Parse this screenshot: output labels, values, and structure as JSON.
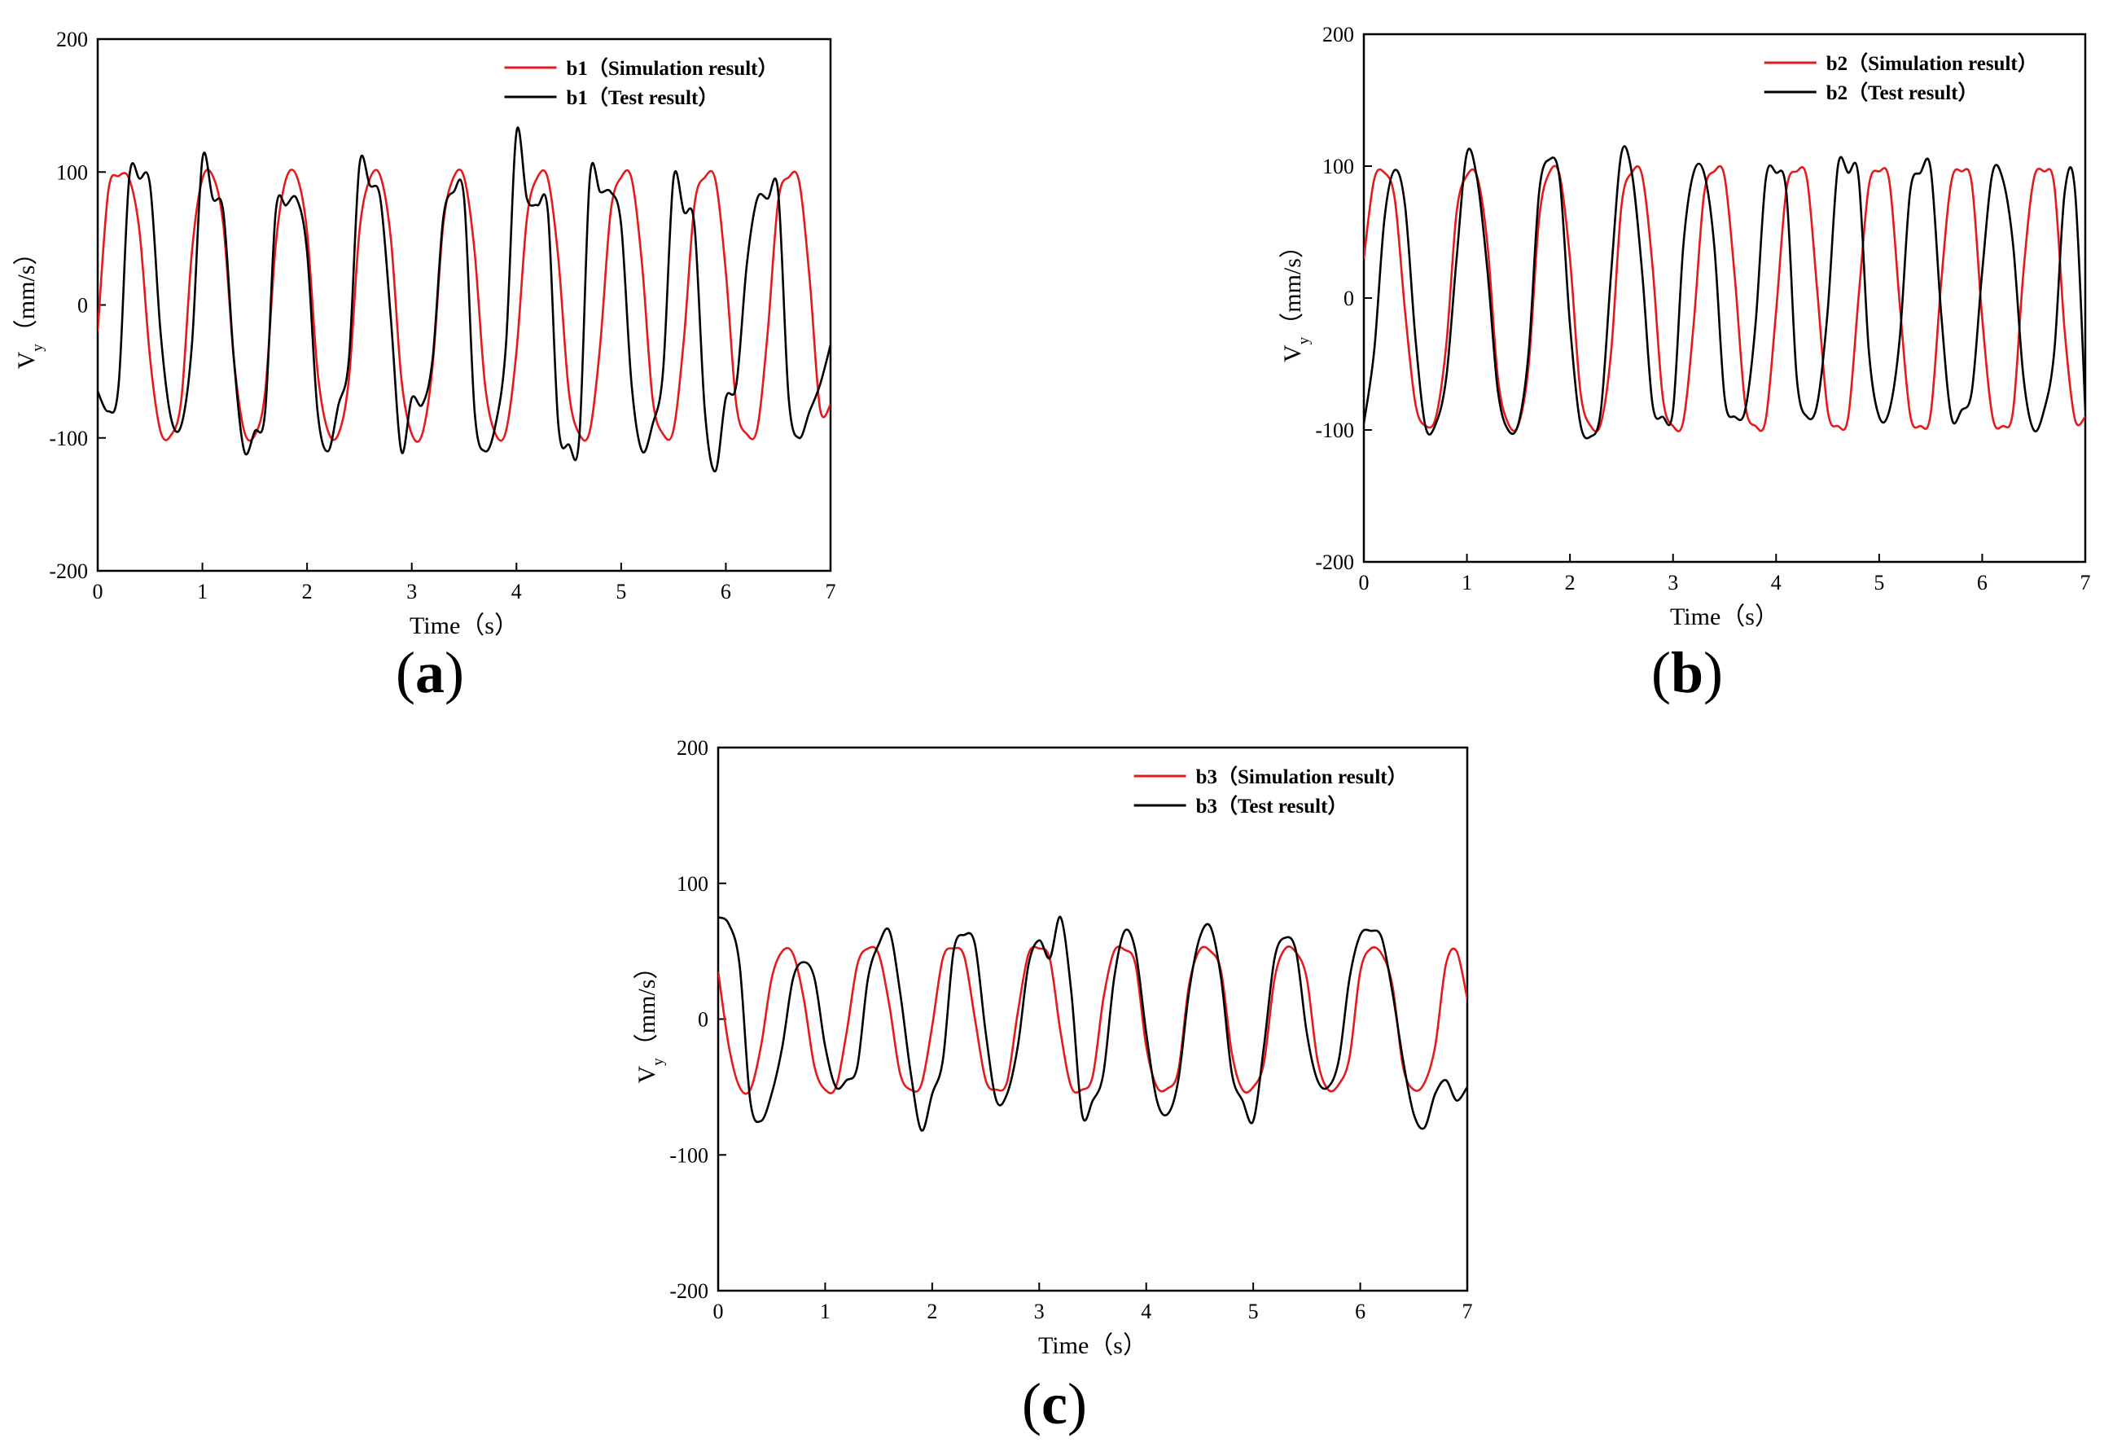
{
  "chart_data": [
    {
      "type": "line",
      "panel_label": "(a)",
      "xlabel": "Time（s）",
      "ylabel": "V",
      "ylabel_sub": "y",
      "ylabel_unit": "（mm/s）",
      "xlim": [
        0,
        7
      ],
      "ylim": [
        -200,
        200
      ],
      "xticks": [
        "0",
        "1",
        "2",
        "3",
        "4",
        "5",
        "6",
        "7"
      ],
      "yticks": [
        "-200",
        "-100",
        "0",
        "100",
        "200"
      ],
      "legend_position": "top-right",
      "series": [
        {
          "name": "b1（Simulation result）",
          "color": "#e41a1c",
          "x": [
            0,
            0.1,
            0.2,
            0.3,
            0.4,
            0.5,
            0.6,
            0.7,
            0.8,
            0.9,
            1.0,
            1.1,
            1.2,
            1.3,
            1.4,
            1.5,
            1.6,
            1.7,
            1.8,
            1.9,
            2.0,
            2.1,
            2.2,
            2.3,
            2.4,
            2.5,
            2.6,
            2.7,
            2.8,
            2.9,
            3.0,
            3.1,
            3.2,
            3.3,
            3.4,
            3.5,
            3.6,
            3.7,
            3.8,
            3.9,
            4.0,
            4.1,
            4.2,
            4.3,
            4.4,
            4.5,
            4.6,
            4.7,
            4.8,
            4.9,
            5.0,
            5.1,
            5.2,
            5.3,
            5.4,
            5.5,
            5.6,
            5.7,
            5.8,
            5.9,
            6.0,
            6.1,
            6.2,
            6.3,
            6.4,
            6.5,
            6.6,
            6.7,
            6.8,
            6.9,
            7.0
          ],
          "values": [
            -20,
            85,
            97,
            95,
            55,
            -40,
            -95,
            -98,
            -70,
            40,
            95,
            97,
            60,
            -40,
            -95,
            -98,
            -65,
            45,
            95,
            97,
            55,
            -50,
            -95,
            -97,
            -55,
            55,
            95,
            97,
            50,
            -55,
            -97,
            -97,
            -45,
            60,
            96,
            96,
            40,
            -60,
            -97,
            -95,
            -35,
            65,
            96,
            95,
            35,
            -65,
            -97,
            -95,
            -30,
            70,
            96,
            95,
            30,
            -70,
            -97,
            -94,
            -25,
            75,
            96,
            94,
            25,
            -75,
            -97,
            -93,
            -20,
            78,
            96,
            93,
            20,
            -78,
            -75
          ]
        },
        {
          "name": "b1（Test result）",
          "color": "#000000",
          "x": [
            0,
            0.1,
            0.2,
            0.3,
            0.4,
            0.5,
            0.6,
            0.7,
            0.8,
            0.9,
            1.0,
            1.1,
            1.2,
            1.3,
            1.4,
            1.5,
            1.6,
            1.7,
            1.8,
            1.9,
            2.0,
            2.1,
            2.2,
            2.3,
            2.4,
            2.5,
            2.6,
            2.7,
            2.8,
            2.9,
            3.0,
            3.1,
            3.2,
            3.3,
            3.4,
            3.5,
            3.6,
            3.7,
            3.8,
            3.9,
            4.0,
            4.1,
            4.2,
            4.3,
            4.4,
            4.5,
            4.6,
            4.7,
            4.8,
            4.9,
            5.0,
            5.1,
            5.2,
            5.3,
            5.4,
            5.5,
            5.6,
            5.7,
            5.8,
            5.9,
            6.0,
            6.1,
            6.2,
            6.3,
            6.4,
            6.5,
            6.6,
            6.7,
            6.8,
            6.9,
            7.0
          ],
          "values": [
            -65,
            -80,
            -60,
            95,
            95,
            90,
            -20,
            -85,
            -90,
            -30,
            110,
            80,
            70,
            -40,
            -110,
            -95,
            -80,
            70,
            75,
            80,
            40,
            -80,
            -110,
            -75,
            -40,
            105,
            90,
            80,
            -10,
            -110,
            -70,
            -75,
            -40,
            65,
            85,
            80,
            -80,
            -110,
            -90,
            -30,
            130,
            80,
            75,
            70,
            -90,
            -105,
            -100,
            95,
            85,
            85,
            60,
            -60,
            -110,
            -90,
            -50,
            95,
            70,
            60,
            -80,
            -125,
            -70,
            -60,
            30,
            80,
            80,
            85,
            -70,
            -100,
            -80,
            -60,
            -30
          ]
        }
      ]
    },
    {
      "type": "line",
      "panel_label": "(b)",
      "xlabel": "Time（s）",
      "ylabel": "V",
      "ylabel_sub": "y",
      "ylabel_unit": "（mm/s）",
      "xlim": [
        0,
        7
      ],
      "ylim": [
        -200,
        200
      ],
      "xticks": [
        "0",
        "1",
        "2",
        "3",
        "4",
        "5",
        "6",
        "7"
      ],
      "yticks": [
        "-200",
        "-100",
        "0",
        "100",
        "200"
      ],
      "legend_position": "top-right",
      "series": [
        {
          "name": "b2（Simulation result）",
          "color": "#e41a1c",
          "x": [
            0,
            0.1,
            0.2,
            0.3,
            0.4,
            0.5,
            0.6,
            0.7,
            0.8,
            0.9,
            1.0,
            1.1,
            1.2,
            1.3,
            1.4,
            1.5,
            1.6,
            1.7,
            1.8,
            1.9,
            2.0,
            2.1,
            2.2,
            2.3,
            2.4,
            2.5,
            2.6,
            2.7,
            2.8,
            2.9,
            3.0,
            3.1,
            3.2,
            3.3,
            3.4,
            3.5,
            3.6,
            3.7,
            3.8,
            3.9,
            4.0,
            4.1,
            4.2,
            4.3,
            4.4,
            4.5,
            4.6,
            4.7,
            4.8,
            4.9,
            5.0,
            5.1,
            5.2,
            5.3,
            5.4,
            5.5,
            5.6,
            5.7,
            5.8,
            5.9,
            6.0,
            6.1,
            6.2,
            6.3,
            6.4,
            6.5,
            6.6,
            6.7,
            6.8,
            6.9,
            7.0
          ],
          "values": [
            30,
            90,
            95,
            75,
            -10,
            -80,
            -97,
            -90,
            -35,
            65,
            93,
            92,
            40,
            -60,
            -95,
            -96,
            -50,
            60,
            95,
            93,
            30,
            -70,
            -97,
            -95,
            -40,
            70,
            95,
            93,
            25,
            -75,
            -97,
            -93,
            -20,
            78,
            96,
            92,
            15,
            -80,
            -97,
            -92,
            -10,
            82,
            96,
            90,
            5,
            -85,
            -97,
            -90,
            0,
            85,
            96,
            88,
            -5,
            -88,
            -97,
            -88,
            10,
            88,
            96,
            86,
            -15,
            -90,
            -97,
            -85,
            20,
            90,
            96,
            85,
            -25,
            -92,
            -90
          ]
        },
        {
          "name": "b2（Test result）",
          "color": "#000000",
          "x": [
            0,
            0.1,
            0.2,
            0.3,
            0.4,
            0.5,
            0.6,
            0.7,
            0.8,
            0.9,
            1.0,
            1.1,
            1.2,
            1.3,
            1.4,
            1.5,
            1.6,
            1.7,
            1.8,
            1.9,
            2.0,
            2.1,
            2.2,
            2.3,
            2.4,
            2.5,
            2.6,
            2.7,
            2.8,
            2.9,
            3.0,
            3.1,
            3.2,
            3.3,
            3.4,
            3.5,
            3.6,
            3.7,
            3.8,
            3.9,
            4.0,
            4.1,
            4.2,
            4.3,
            4.4,
            4.5,
            4.6,
            4.7,
            4.8,
            4.9,
            5.0,
            5.1,
            5.2,
            5.3,
            5.4,
            5.5,
            5.6,
            5.7,
            5.8,
            5.9,
            6.0,
            6.1,
            6.2,
            6.3,
            6.4,
            6.5,
            6.6,
            6.7,
            6.8,
            6.9,
            7.0
          ],
          "values": [
            -95,
            -40,
            60,
            97,
            70,
            -30,
            -98,
            -95,
            -60,
            30,
            110,
            90,
            20,
            -70,
            -100,
            -95,
            -40,
            80,
            105,
            90,
            -20,
            -95,
            -105,
            -85,
            20,
            110,
            95,
            20,
            -80,
            -90,
            -85,
            40,
            95,
            95,
            40,
            -75,
            -90,
            -85,
            -20,
            90,
            95,
            80,
            -60,
            -90,
            -80,
            -10,
            100,
            95,
            92,
            -40,
            -90,
            -85,
            -30,
            80,
            95,
            98,
            -10,
            -90,
            -85,
            -70,
            20,
            95,
            90,
            40,
            -60,
            -100,
            -85,
            -40,
            80,
            82,
            -85
          ]
        }
      ]
    },
    {
      "type": "line",
      "panel_label": "(c)",
      "xlabel": "Time（s）",
      "ylabel": "V",
      "ylabel_sub": "y",
      "ylabel_unit": "（mm/s）",
      "xlim": [
        0,
        7
      ],
      "ylim": [
        -200,
        200
      ],
      "xticks": [
        "0",
        "1",
        "2",
        "3",
        "4",
        "5",
        "6",
        "7"
      ],
      "yticks": [
        "-200",
        "-100",
        "0",
        "100",
        "200"
      ],
      "legend_position": "top-right",
      "series": [
        {
          "name": "b3（Simulation result）",
          "color": "#e41a1c",
          "x": [
            0,
            0.1,
            0.2,
            0.3,
            0.4,
            0.5,
            0.6,
            0.7,
            0.8,
            0.9,
            1.0,
            1.1,
            1.2,
            1.3,
            1.4,
            1.5,
            1.6,
            1.7,
            1.8,
            1.9,
            2.0,
            2.1,
            2.2,
            2.3,
            2.4,
            2.5,
            2.6,
            2.7,
            2.8,
            2.9,
            3.0,
            3.1,
            3.2,
            3.3,
            3.4,
            3.5,
            3.6,
            3.7,
            3.8,
            3.9,
            4.0,
            4.1,
            4.2,
            4.3,
            4.4,
            4.5,
            4.6,
            4.7,
            4.8,
            4.9,
            5.0,
            5.1,
            5.2,
            5.3,
            5.4,
            5.5,
            5.6,
            5.7,
            5.8,
            5.9,
            6.0,
            6.1,
            6.2,
            6.3,
            6.4,
            6.5,
            6.6,
            6.7,
            6.8,
            6.9,
            7.0
          ],
          "values": [
            35,
            -20,
            -50,
            -52,
            -20,
            30,
            50,
            48,
            15,
            -35,
            -52,
            -50,
            -10,
            40,
            52,
            48,
            10,
            -40,
            -52,
            -48,
            -5,
            45,
            52,
            46,
            0,
            -45,
            -52,
            -46,
            5,
            48,
            52,
            44,
            -10,
            -50,
            -52,
            -42,
            15,
            50,
            51,
            40,
            -20,
            -50,
            -51,
            -38,
            25,
            51,
            50,
            35,
            -25,
            -52,
            -50,
            -32,
            30,
            52,
            49,
            30,
            -30,
            -52,
            -48,
            -28,
            35,
            52,
            48,
            25,
            -35,
            -52,
            -47,
            -20,
            40,
            50,
            15
          ]
        },
        {
          "name": "b3（Test result）",
          "color": "#000000",
          "x": [
            0,
            0.1,
            0.2,
            0.3,
            0.4,
            0.5,
            0.6,
            0.7,
            0.8,
            0.9,
            1.0,
            1.1,
            1.2,
            1.3,
            1.4,
            1.5,
            1.6,
            1.7,
            1.8,
            1.9,
            2.0,
            2.1,
            2.2,
            2.3,
            2.4,
            2.5,
            2.6,
            2.7,
            2.8,
            2.9,
            3.0,
            3.1,
            3.2,
            3.3,
            3.4,
            3.5,
            3.6,
            3.7,
            3.8,
            3.9,
            4.0,
            4.1,
            4.2,
            4.3,
            4.4,
            4.5,
            4.6,
            4.7,
            4.8,
            4.9,
            5.0,
            5.1,
            5.2,
            5.3,
            5.4,
            5.5,
            5.6,
            5.7,
            5.8,
            5.9,
            6.0,
            6.1,
            6.2,
            6.3,
            6.4,
            6.5,
            6.6,
            6.7,
            6.8,
            6.9,
            7.0
          ],
          "values": [
            75,
            70,
            40,
            -60,
            -75,
            -55,
            -20,
            30,
            42,
            30,
            -20,
            -50,
            -45,
            -35,
            30,
            55,
            65,
            20,
            -40,
            -82,
            -55,
            -30,
            50,
            62,
            55,
            -10,
            -60,
            -55,
            -20,
            40,
            58,
            45,
            75,
            20,
            -70,
            -60,
            -40,
            30,
            65,
            50,
            -10,
            -60,
            -70,
            -45,
            20,
            60,
            68,
            30,
            -40,
            -60,
            -75,
            -20,
            45,
            60,
            50,
            -10,
            -45,
            -50,
            -30,
            30,
            62,
            65,
            60,
            20,
            -30,
            -70,
            -80,
            -55,
            -45,
            -60,
            -50
          ]
        }
      ]
    }
  ]
}
